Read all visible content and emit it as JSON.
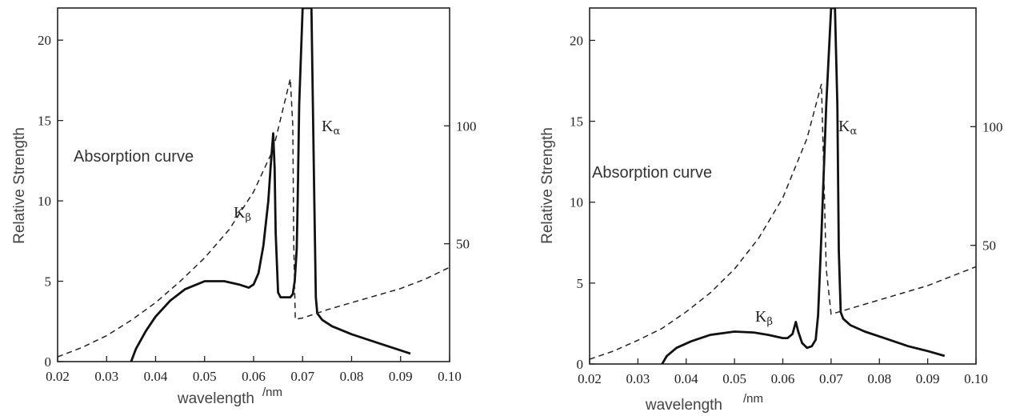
{
  "chart_data": [
    {
      "type": "line",
      "xlabel": "wavelength",
      "xunit": "/nm",
      "ylabel": "Relative Strength",
      "xlim": [
        0.02,
        0.1
      ],
      "ylim": [
        0,
        22
      ],
      "y2lim": [
        0,
        150
      ],
      "grid": false,
      "legend": "none",
      "xticks": [
        "0.02",
        "0.03",
        "0.04",
        "0.05",
        "0.06",
        "0.07",
        "0.08",
        "0.09",
        "0.10"
      ],
      "yticks": [
        "0",
        "5",
        "10",
        "15",
        "20"
      ],
      "y2ticks": [
        "50",
        "100"
      ],
      "annotations": {
        "absorption": "Absorption curve",
        "kalpha_main": "K",
        "kalpha_sub": "α",
        "kbeta_main": "K",
        "kbeta_sub": "β"
      },
      "series": [
        {
          "style": "solid",
          "axis": "left",
          "x": [
            0.035,
            0.036,
            0.038,
            0.04,
            0.043,
            0.046,
            0.05,
            0.054,
            0.057,
            0.059,
            0.06,
            0.061,
            0.062,
            0.063,
            0.0635,
            0.064,
            0.0643,
            0.0645,
            0.065,
            0.0655,
            0.0665,
            0.0675,
            0.068,
            0.0684,
            0.0688,
            0.069,
            0.0693,
            0.07,
            0.0708,
            0.0718,
            0.0724,
            0.0727,
            0.073,
            0.074,
            0.076,
            0.08,
            0.085,
            0.09,
            0.092
          ],
          "y": [
            0.0,
            0.8,
            1.9,
            2.8,
            3.8,
            4.5,
            5.0,
            5.0,
            4.8,
            4.6,
            4.8,
            5.5,
            7.2,
            10.0,
            12.2,
            14.2,
            12.0,
            8.0,
            4.3,
            4.0,
            4.0,
            4.0,
            4.2,
            5.0,
            7.0,
            10.0,
            16.0,
            22.0,
            22.0,
            22.0,
            10.0,
            4.0,
            3.0,
            2.6,
            2.2,
            1.7,
            1.2,
            0.7,
            0.5
          ]
        },
        {
          "style": "dashed",
          "axis": "right",
          "x": [
            0.02,
            0.025,
            0.03,
            0.035,
            0.04,
            0.045,
            0.05,
            0.055,
            0.06,
            0.064,
            0.0675,
            0.068,
            0.0682,
            0.0685,
            0.07,
            0.075,
            0.08,
            0.085,
            0.09,
            0.095,
            0.1
          ],
          "y": [
            2.0,
            6.0,
            11.0,
            17.5,
            25.0,
            34.0,
            44.0,
            56.0,
            72.0,
            90.0,
            120.0,
            100.0,
            50.0,
            18.0,
            18.5,
            22.0,
            25.0,
            28.0,
            31.0,
            35.0,
            40.0
          ]
        }
      ]
    },
    {
      "type": "line",
      "xlabel": "wavelength",
      "xunit": "/nm",
      "ylabel": "Relative Strength",
      "xlim": [
        0.02,
        0.1
      ],
      "ylim": [
        0,
        22
      ],
      "y2lim": [
        0,
        150
      ],
      "grid": false,
      "legend": "none",
      "xticks": [
        "0.02",
        "0.03",
        "0.04",
        "0.05",
        "0.06",
        "0.07",
        "0.08",
        "0.09",
        "0.10"
      ],
      "yticks": [
        "0",
        "5",
        "10",
        "15",
        "20"
      ],
      "y2ticks": [
        "50",
        "100"
      ],
      "annotations": {
        "absorption": "Absorption curve",
        "kalpha_main": "K",
        "kalpha_sub": "α",
        "kbeta_main": "K",
        "kbeta_sub": "β"
      },
      "series": [
        {
          "style": "solid",
          "axis": "left",
          "x": [
            0.035,
            0.036,
            0.038,
            0.041,
            0.045,
            0.05,
            0.054,
            0.057,
            0.06,
            0.061,
            0.062,
            0.0627,
            0.0632,
            0.064,
            0.065,
            0.066,
            0.0668,
            0.0673,
            0.068,
            0.069,
            0.07,
            0.0708,
            0.0713,
            0.0716,
            0.072,
            0.0725,
            0.074,
            0.077,
            0.081,
            0.086,
            0.09,
            0.0935
          ],
          "y": [
            0.0,
            0.5,
            1.0,
            1.4,
            1.8,
            2.0,
            1.95,
            1.8,
            1.6,
            1.6,
            1.85,
            2.6,
            2.0,
            1.3,
            1.0,
            1.1,
            1.5,
            3.0,
            8.0,
            16.0,
            22.0,
            22.0,
            16.0,
            7.0,
            3.2,
            2.8,
            2.4,
            2.0,
            1.6,
            1.1,
            0.8,
            0.5
          ]
        },
        {
          "style": "dashed",
          "axis": "right",
          "x": [
            0.02,
            0.025,
            0.03,
            0.035,
            0.04,
            0.045,
            0.05,
            0.055,
            0.06,
            0.065,
            0.068,
            0.0685,
            0.069,
            0.07,
            0.075,
            0.08,
            0.085,
            0.09,
            0.095,
            0.1
          ],
          "y": [
            2.0,
            5.5,
            10.0,
            15.0,
            22.0,
            30.0,
            40.0,
            53.0,
            70.0,
            95.0,
            118.0,
            80.0,
            40.0,
            21.0,
            24.0,
            27.0,
            30.0,
            33.0,
            37.0,
            41.0
          ]
        }
      ]
    }
  ]
}
